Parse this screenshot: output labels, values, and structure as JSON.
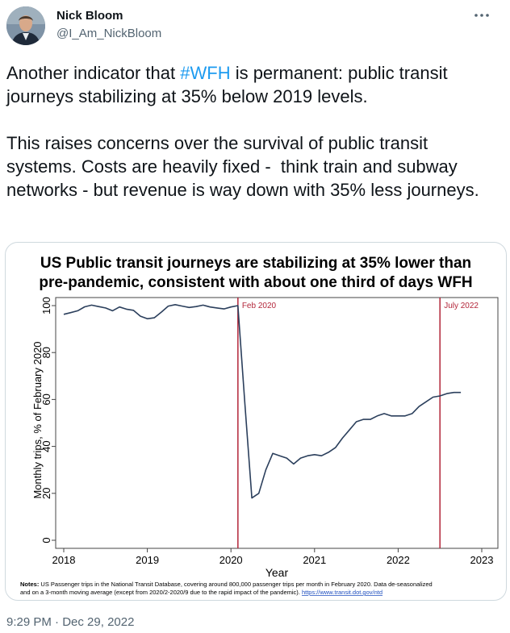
{
  "author": {
    "name": "Nick Bloom",
    "handle": "@I_Am_NickBloom"
  },
  "menu_icon": "more-horizontal-icon",
  "tweet": {
    "text_before_hashtag": "Another indicator that ",
    "hashtag": "#WFH",
    "text_after_hashtag": " is permanent: public transit journeys stabilizing at 35% below 2019 levels.\n\nThis raises concerns over the survival of public transit systems. Costs are heavily fixed -  think train and subway networks - but revenue is way down with 35% less journeys."
  },
  "timestamp": {
    "time": "9:29 PM",
    "separator": " · ",
    "date": "Dec 29, 2022"
  },
  "colors": {
    "accent": "#1d9bf0",
    "line": "#2b3f5c",
    "marker": "#b3263a"
  },
  "chart_data": {
    "type": "line",
    "title": "US Public transit journeys are stabilizing at 35% lower than pre-pandemic, consistent with about one third of days WFH",
    "title_lines": [
      "US Public transit journeys are stabilizing at 35% lower than",
      "pre-pandemic, consistent with about one third of days WFH"
    ],
    "xlabel": "Year",
    "ylabel": "Monthly trips, % of February 2020",
    "xlim": [
      2018,
      2023
    ],
    "ylim": [
      0,
      100
    ],
    "xticks": [
      2018,
      2019,
      2020,
      2021,
      2022,
      2023
    ],
    "yticks": [
      0,
      20,
      40,
      60,
      80,
      100
    ],
    "grid": false,
    "series": [
      {
        "x": [
          "2018-01",
          "2018-02",
          "2018-03",
          "2018-04",
          "2018-05",
          "2018-06",
          "2018-07",
          "2018-08",
          "2018-09",
          "2018-10",
          "2018-11",
          "2018-12",
          "2019-01",
          "2019-02",
          "2019-03",
          "2019-04",
          "2019-05",
          "2019-06",
          "2019-07",
          "2019-08",
          "2019-09",
          "2019-10",
          "2019-11",
          "2019-12",
          "2020-01",
          "2020-02",
          "2020-03",
          "2020-04",
          "2020-05",
          "2020-06",
          "2020-07",
          "2020-08",
          "2020-09",
          "2020-10",
          "2020-11",
          "2020-12",
          "2021-01",
          "2021-02",
          "2021-03",
          "2021-04",
          "2021-05",
          "2021-06",
          "2021-07",
          "2021-08",
          "2021-09",
          "2021-10",
          "2021-11",
          "2021-12",
          "2022-01",
          "2022-02",
          "2022-03",
          "2022-04",
          "2022-05",
          "2022-06",
          "2022-07",
          "2022-08",
          "2022-09",
          "2022-10"
        ],
        "values": [
          96.3,
          97,
          97.8,
          99.5,
          100.2,
          99.6,
          99,
          97.8,
          99.4,
          98.5,
          98,
          95.5,
          94.4,
          94.8,
          97.2,
          99.8,
          100.4,
          99.8,
          99.2,
          99.6,
          100.2,
          99.4,
          99,
          98.6,
          99.4,
          100,
          58,
          18,
          20,
          30,
          37,
          36,
          35,
          32.5,
          35,
          36,
          36.5,
          36,
          37.5,
          39.5,
          43.5,
          47,
          50.5,
          51.5,
          51.5,
          53,
          54,
          53,
          53,
          53,
          54,
          57,
          59,
          61,
          61.5,
          62.5,
          63,
          63
        ]
      }
    ],
    "vlines": [
      {
        "x": "2020-02",
        "label": "Feb 2020"
      },
      {
        "x": "2022-07",
        "label": "July 2022"
      }
    ],
    "notes_label": "Notes:",
    "notes_line1": " US Passenger trips in the National Transit Database, covering around 800,000 passenger trips per month in February 2020. Data de-seasonalized",
    "notes_line2": "and on a 3-month moving average (except from 2020/2-2020/9 due to the rapid impact of the pandemic). ",
    "notes_link": "https://www.transit.dot.gov/ntd"
  }
}
